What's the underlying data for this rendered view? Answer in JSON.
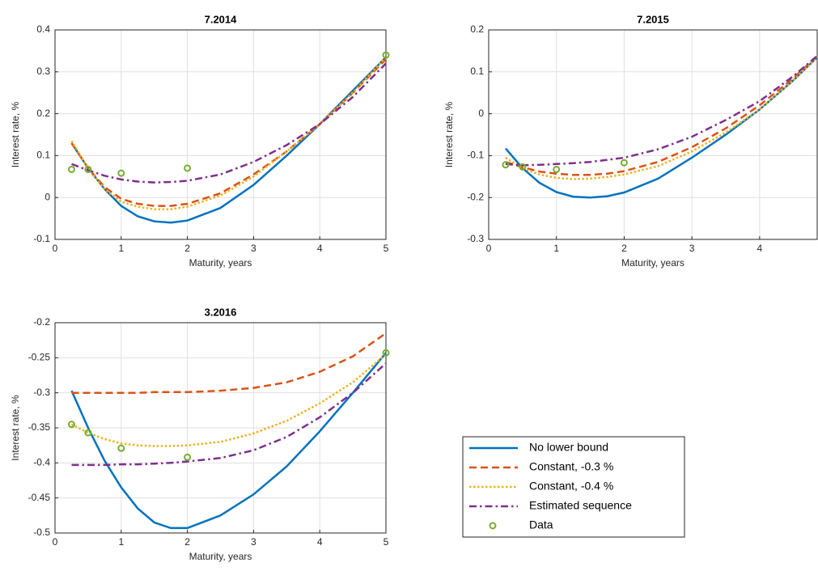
{
  "chart_data": [
    {
      "type": "line",
      "title": "7.2014",
      "xlabel": "Maturity, years",
      "ylabel": "Interest rate, %",
      "xlim": [
        0,
        5
      ],
      "ylim": [
        -0.1,
        0.4
      ],
      "xticks": [
        0,
        1,
        2,
        3,
        4,
        5
      ],
      "yticks": [
        -0.1,
        0,
        0.1,
        0.2,
        0.3,
        0.4
      ],
      "grid": true,
      "x": [
        0.25,
        0.5,
        0.75,
        1,
        1.25,
        1.5,
        1.75,
        2,
        2.5,
        3,
        3.5,
        4,
        4.5,
        5
      ],
      "series": [
        {
          "color": "#0072bd",
          "style": "solid",
          "values": [
            0.13,
            0.07,
            0.02,
            -0.02,
            -0.045,
            -0.057,
            -0.06,
            -0.055,
            -0.025,
            0.03,
            0.1,
            0.175,
            0.255,
            0.335
          ]
        },
        {
          "color": "#d95319",
          "style": "dashed",
          "values": [
            0.13,
            0.07,
            0.025,
            -0.003,
            -0.015,
            -0.02,
            -0.02,
            -0.015,
            0.01,
            0.055,
            0.11,
            0.175,
            0.25,
            0.33
          ]
        },
        {
          "color": "#edb120",
          "style": "dotted",
          "values": [
            0.135,
            0.07,
            0.02,
            -0.01,
            -0.022,
            -0.028,
            -0.028,
            -0.022,
            0.005,
            0.05,
            0.11,
            0.175,
            0.25,
            0.335
          ]
        },
        {
          "color": "#7e2f8e",
          "style": "dashdot",
          "values": [
            0.08,
            0.065,
            0.052,
            0.043,
            0.038,
            0.036,
            0.037,
            0.04,
            0.055,
            0.085,
            0.125,
            0.175,
            0.24,
            0.32
          ]
        },
        {
          "type": "scatter",
          "color": "#77ac30",
          "x": [
            0.25,
            0.5,
            1,
            2,
            5
          ],
          "values": [
            0.067,
            0.067,
            0.058,
            0.07,
            0.34
          ]
        }
      ]
    },
    {
      "type": "line",
      "title": "7.2015",
      "xlabel": "Maturity, years",
      "ylabel": "Interest rate, %",
      "xlim": [
        0,
        4.85
      ],
      "ylim": [
        -0.3,
        0.2
      ],
      "xticks": [
        0,
        1,
        2,
        3,
        4
      ],
      "yticks": [
        -0.3,
        -0.2,
        -0.1,
        0,
        0.1,
        0.2
      ],
      "grid": true,
      "x": [
        0.25,
        0.5,
        0.75,
        1,
        1.25,
        1.5,
        1.75,
        2,
        2.5,
        3,
        3.5,
        4,
        4.5,
        4.85
      ],
      "series": [
        {
          "color": "#0072bd",
          "style": "solid",
          "values": [
            -0.083,
            -0.13,
            -0.165,
            -0.187,
            -0.198,
            -0.2,
            -0.197,
            -0.188,
            -0.155,
            -0.105,
            -0.05,
            0.01,
            0.08,
            0.135
          ]
        },
        {
          "color": "#d95319",
          "style": "dashed",
          "values": [
            -0.115,
            -0.128,
            -0.138,
            -0.143,
            -0.146,
            -0.146,
            -0.143,
            -0.137,
            -0.115,
            -0.08,
            -0.035,
            0.02,
            0.085,
            0.138
          ]
        },
        {
          "color": "#edb120",
          "style": "dotted",
          "values": [
            -0.105,
            -0.13,
            -0.145,
            -0.153,
            -0.156,
            -0.155,
            -0.151,
            -0.145,
            -0.125,
            -0.09,
            -0.045,
            0.01,
            0.08,
            0.135
          ]
        },
        {
          "color": "#7e2f8e",
          "style": "dashdot",
          "values": [
            -0.12,
            -0.123,
            -0.122,
            -0.12,
            -0.118,
            -0.115,
            -0.11,
            -0.105,
            -0.085,
            -0.055,
            -0.015,
            0.03,
            0.09,
            0.138
          ]
        },
        {
          "type": "scatter",
          "color": "#77ac30",
          "x": [
            0.25,
            0.5,
            1,
            2
          ],
          "values": [
            -0.122,
            -0.127,
            -0.133,
            -0.117
          ]
        }
      ]
    },
    {
      "type": "line",
      "title": "3.2016",
      "xlabel": "Maturity, years",
      "ylabel": "Interest rate, %",
      "xlim": [
        0,
        5
      ],
      "ylim": [
        -0.5,
        -0.2
      ],
      "xticks": [
        0,
        1,
        2,
        3,
        4,
        5
      ],
      "yticks": [
        -0.5,
        -0.45,
        -0.4,
        -0.35,
        -0.3,
        -0.25,
        -0.2
      ],
      "grid": true,
      "x": [
        0.25,
        0.5,
        0.75,
        1,
        1.25,
        1.5,
        1.75,
        2,
        2.5,
        3,
        3.5,
        4,
        4.5,
        5
      ],
      "series": [
        {
          "name": "No lower bound",
          "color": "#0072bd",
          "style": "solid",
          "values": [
            -0.297,
            -0.35,
            -0.397,
            -0.435,
            -0.465,
            -0.485,
            -0.493,
            -0.493,
            -0.475,
            -0.445,
            -0.405,
            -0.355,
            -0.3,
            -0.243
          ]
        },
        {
          "name": "Constant, -0.3 %",
          "color": "#d95319",
          "style": "dashed",
          "values": [
            -0.3,
            -0.3,
            -0.3,
            -0.3,
            -0.3,
            -0.299,
            -0.299,
            -0.299,
            -0.297,
            -0.293,
            -0.285,
            -0.27,
            -0.248,
            -0.215
          ]
        },
        {
          "name": "Constant, -0.4 %",
          "color": "#edb120",
          "style": "dotted",
          "values": [
            -0.345,
            -0.357,
            -0.366,
            -0.372,
            -0.375,
            -0.376,
            -0.376,
            -0.375,
            -0.37,
            -0.358,
            -0.34,
            -0.315,
            -0.285,
            -0.245
          ]
        },
        {
          "name": "Estimated sequence",
          "color": "#7e2f8e",
          "style": "dashdot",
          "values": [
            -0.403,
            -0.403,
            -0.403,
            -0.402,
            -0.402,
            -0.401,
            -0.4,
            -0.398,
            -0.393,
            -0.382,
            -0.363,
            -0.335,
            -0.3,
            -0.258
          ]
        },
        {
          "name": "Data",
          "type": "scatter",
          "color": "#77ac30",
          "x": [
            0.25,
            0.5,
            1,
            2,
            5
          ],
          "values": [
            -0.345,
            -0.357,
            -0.379,
            -0.392,
            -0.243
          ]
        }
      ]
    }
  ]
}
